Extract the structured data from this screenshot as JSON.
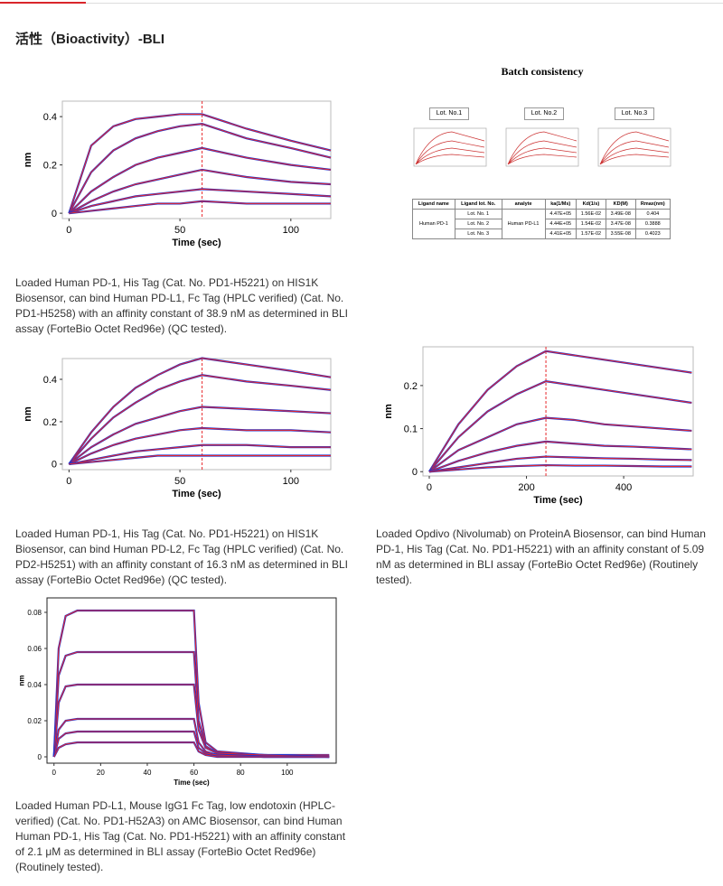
{
  "header": {
    "title": "活性（Bioactivity）-BLI"
  },
  "batch": {
    "title": "Batch consistency",
    "lots": [
      "Lot. No.1",
      "Lot. No.2",
      "Lot. No.3"
    ],
    "table": {
      "header": [
        "Ligand name",
        "Ligand lot. No.",
        "analyte",
        "ka(1/Ms)",
        "Kd(1/s)",
        "KD(M)",
        "Rmax(nm)"
      ],
      "ligand": "Human PD-1",
      "analyte": "Human PD-L1",
      "rows": [
        [
          "Lot. No. 1",
          "4.47E+05",
          "1.56E-02",
          "3.49E-08",
          "0.404"
        ],
        [
          "Lot. No. 2",
          "4.44E+05",
          "1.54E-02",
          "3.47E-08",
          "0.3888"
        ],
        [
          "Lot. No. 3",
          "4.41E+05",
          "1.57E-02",
          "3.55E-08",
          "0.4023"
        ]
      ]
    }
  },
  "chart_data": [
    {
      "type": "line",
      "xlabel": "Time (sec)",
      "ylabel": "nm",
      "xlim": [
        -3,
        118
      ],
      "ylim": [
        -0.022,
        0.464
      ],
      "xticks": [
        0,
        50,
        100
      ],
      "yticks": [
        0,
        0.2,
        0.4
      ],
      "vlines": [
        60
      ],
      "fit_color": "#e8262a",
      "x": [
        0,
        10,
        20,
        30,
        40,
        50,
        60,
        80,
        100,
        118
      ],
      "series": [
        {
          "color": "#2233cc",
          "values": [
            0,
            0.28,
            0.36,
            0.39,
            0.4,
            0.41,
            0.41,
            0.35,
            0.3,
            0.26
          ]
        },
        {
          "color": "#2233cc",
          "values": [
            0,
            0.17,
            0.26,
            0.31,
            0.34,
            0.36,
            0.37,
            0.31,
            0.27,
            0.23
          ]
        },
        {
          "color": "#2233cc",
          "values": [
            0,
            0.09,
            0.15,
            0.2,
            0.23,
            0.25,
            0.27,
            0.23,
            0.2,
            0.18
          ]
        },
        {
          "color": "#2233cc",
          "values": [
            0,
            0.05,
            0.09,
            0.12,
            0.14,
            0.16,
            0.18,
            0.15,
            0.13,
            0.12
          ]
        },
        {
          "color": "#2233cc",
          "values": [
            0,
            0.03,
            0.05,
            0.07,
            0.08,
            0.09,
            0.1,
            0.09,
            0.08,
            0.07
          ]
        },
        {
          "color": "#2233cc",
          "values": [
            0,
            0.01,
            0.02,
            0.03,
            0.04,
            0.04,
            0.05,
            0.04,
            0.04,
            0.04
          ]
        }
      ],
      "caption": "Loaded Human PD-1, His Tag (Cat. No. PD1-H5221) on HIS1K Biosensor, can bind Human PD-L1, Fc Tag (HPLC verified) (Cat. No. PD1-H5258) with an affinity constant of 38.9 nM as determined in BLI assay (ForteBio Octet Red96e) (QC tested)."
    },
    {
      "type": "line",
      "xlabel": "Time (sec)",
      "ylabel": "nm",
      "xlim": [
        -3,
        118
      ],
      "ylim": [
        -0.026,
        0.498
      ],
      "xticks": [
        0,
        50,
        100
      ],
      "yticks": [
        0,
        0.2,
        0.4
      ],
      "vlines": [
        60
      ],
      "fit_color": "#e8262a",
      "x": [
        0,
        10,
        20,
        30,
        40,
        50,
        60,
        80,
        100,
        118
      ],
      "series": [
        {
          "color": "#2233cc",
          "values": [
            0,
            0.15,
            0.27,
            0.36,
            0.42,
            0.47,
            0.5,
            0.47,
            0.44,
            0.41
          ]
        },
        {
          "color": "#2233cc",
          "values": [
            0,
            0.12,
            0.22,
            0.29,
            0.35,
            0.39,
            0.42,
            0.39,
            0.37,
            0.35
          ]
        },
        {
          "color": "#2233cc",
          "values": [
            0,
            0.08,
            0.14,
            0.19,
            0.22,
            0.25,
            0.27,
            0.26,
            0.25,
            0.24
          ]
        },
        {
          "color": "#2233cc",
          "values": [
            0,
            0.05,
            0.09,
            0.12,
            0.14,
            0.16,
            0.17,
            0.16,
            0.16,
            0.15
          ]
        },
        {
          "color": "#2233cc",
          "values": [
            0,
            0.02,
            0.04,
            0.06,
            0.07,
            0.08,
            0.09,
            0.09,
            0.08,
            0.08
          ]
        },
        {
          "color": "#2233cc",
          "values": [
            0,
            0.01,
            0.02,
            0.03,
            0.04,
            0.04,
            0.04,
            0.04,
            0.04,
            0.04
          ]
        }
      ],
      "caption": "Loaded Human PD-1, His Tag (Cat. No. PD1-H5221) on HIS1K Biosensor, can bind Human PD-L2, Fc Tag (HPLC verified) (Cat. No. PD2-H5251) with an affinity constant of 16.3 nM as determined in BLI assay (ForteBio Octet Red96e) (QC tested)."
    },
    {
      "type": "line",
      "xlabel": "Time (sec)",
      "ylabel": "nm",
      "xlim": [
        -13,
        543
      ],
      "ylim": [
        -0.01,
        0.29
      ],
      "xticks": [
        0,
        200,
        400
      ],
      "yticks": [
        0,
        0.1,
        0.2
      ],
      "vlines": [
        240
      ],
      "fit_color": "#e8262a",
      "x": [
        0,
        60,
        120,
        180,
        240,
        300,
        360,
        420,
        480,
        540
      ],
      "series": [
        {
          "color": "#2233cc",
          "values": [
            0,
            0.11,
            0.19,
            0.245,
            0.28,
            0.27,
            0.26,
            0.25,
            0.24,
            0.23
          ]
        },
        {
          "color": "#2233cc",
          "values": [
            0,
            0.08,
            0.14,
            0.18,
            0.21,
            0.2,
            0.19,
            0.18,
            0.17,
            0.16
          ]
        },
        {
          "color": "#2233cc",
          "values": [
            0,
            0.05,
            0.08,
            0.11,
            0.125,
            0.12,
            0.11,
            0.105,
            0.1,
            0.095
          ]
        },
        {
          "color": "#2233cc",
          "values": [
            0,
            0.025,
            0.045,
            0.06,
            0.07,
            0.065,
            0.06,
            0.058,
            0.055,
            0.052
          ]
        },
        {
          "color": "#2233cc",
          "values": [
            0,
            0.01,
            0.02,
            0.03,
            0.035,
            0.033,
            0.031,
            0.03,
            0.028,
            0.027
          ]
        },
        {
          "color": "#2233cc",
          "values": [
            0,
            0.005,
            0.01,
            0.013,
            0.015,
            0.014,
            0.014,
            0.013,
            0.012,
            0.012
          ]
        }
      ],
      "caption": "Loaded Opdivo (Nivolumab) on ProteinA Biosensor, can bind Human PD-1, His Tag (Cat. No. PD1-H5221) with an affinity constant of 5.09 nM as determined in BLI assay (ForteBio Octet Red96e) (Routinely tested)."
    },
    {
      "type": "line",
      "xlabel": "Time (sec)",
      "ylabel": "nm",
      "xlim": [
        -3,
        121
      ],
      "ylim": [
        -0.0035,
        0.088
      ],
      "xticks": [
        0,
        20,
        40,
        60,
        80,
        100
      ],
      "yticks": [
        0,
        0.02,
        0.04,
        0.06,
        0.08
      ],
      "vlines": [],
      "fit_color": "#e8262a",
      "x": [
        0,
        2,
        5,
        10,
        30,
        60,
        62,
        65,
        70,
        90,
        118
      ],
      "series": [
        {
          "color": "#2233cc",
          "values": [
            0,
            0.06,
            0.078,
            0.081,
            0.081,
            0.081,
            0.03,
            0.008,
            0.003,
            0.001,
            0.001
          ]
        },
        {
          "color": "#2233cc",
          "values": [
            0,
            0.045,
            0.056,
            0.058,
            0.058,
            0.058,
            0.02,
            0.006,
            0.002,
            0.001,
            0
          ]
        },
        {
          "color": "#2233cc",
          "values": [
            0,
            0.03,
            0.039,
            0.04,
            0.04,
            0.04,
            0.015,
            0.005,
            0.002,
            0.001,
            0
          ]
        },
        {
          "color": "#2233cc",
          "values": [
            0,
            0.015,
            0.02,
            0.021,
            0.021,
            0.021,
            0.008,
            0.003,
            0.001,
            0,
            0
          ]
        },
        {
          "color": "#2233cc",
          "values": [
            0,
            0.01,
            0.013,
            0.014,
            0.014,
            0.014,
            0.005,
            0.002,
            0.001,
            0,
            0
          ]
        },
        {
          "color": "#2233cc",
          "values": [
            0,
            0.005,
            0.007,
            0.008,
            0.008,
            0.008,
            0.003,
            0.001,
            0,
            0,
            0
          ]
        }
      ],
      "caption": "Loaded Human PD-L1, Mouse IgG1 Fc Tag, low endotoxin (HPLC-verified) (Cat. No. PD1-H52A3) on AMC Biosensor, can bind Human Human PD-1, His Tag (Cat. No. PD1-H5221) with an affinity constant of 2.1 μM as determined in BLI assay (ForteBio Octet Red96e) (Routinely tested)."
    }
  ]
}
